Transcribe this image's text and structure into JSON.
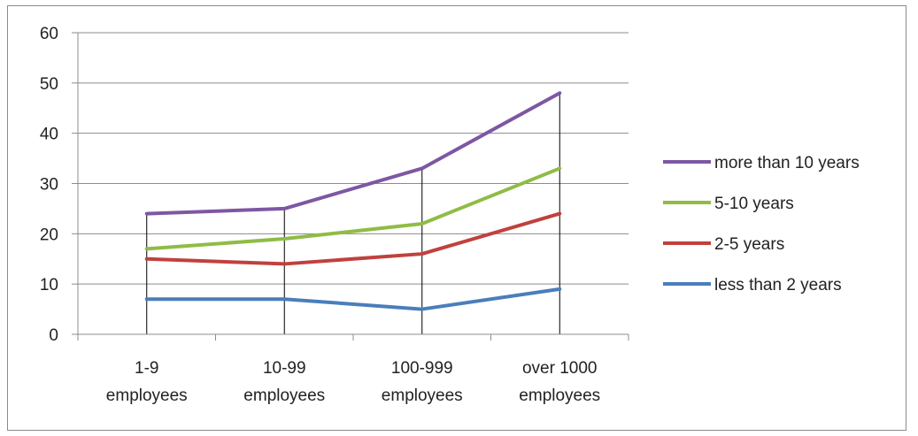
{
  "chart_data": {
    "type": "line",
    "title": "",
    "xlabel": "",
    "ylabel": "",
    "categories": [
      [
        "1-9",
        "employees"
      ],
      [
        "10-99",
        "employees"
      ],
      [
        "100-999",
        "employees"
      ],
      [
        "over 1000",
        "employees"
      ]
    ],
    "ylim": [
      0,
      60
    ],
    "yticks": [
      0,
      10,
      20,
      30,
      40,
      50,
      60
    ],
    "grid": "horizontal",
    "legend_position": "right",
    "series": [
      {
        "name": "more than 10 years",
        "color": "#7e57a3",
        "values": [
          24,
          25,
          33,
          48
        ]
      },
      {
        "name": "5-10 years",
        "color": "#8fbc45",
        "values": [
          17,
          19,
          22,
          33
        ]
      },
      {
        "name": "2-5 years",
        "color": "#c0413d",
        "values": [
          15,
          14,
          16,
          24
        ]
      },
      {
        "name": "less than 2 years",
        "color": "#4a7ebb",
        "values": [
          7,
          7,
          5,
          9
        ]
      }
    ]
  }
}
